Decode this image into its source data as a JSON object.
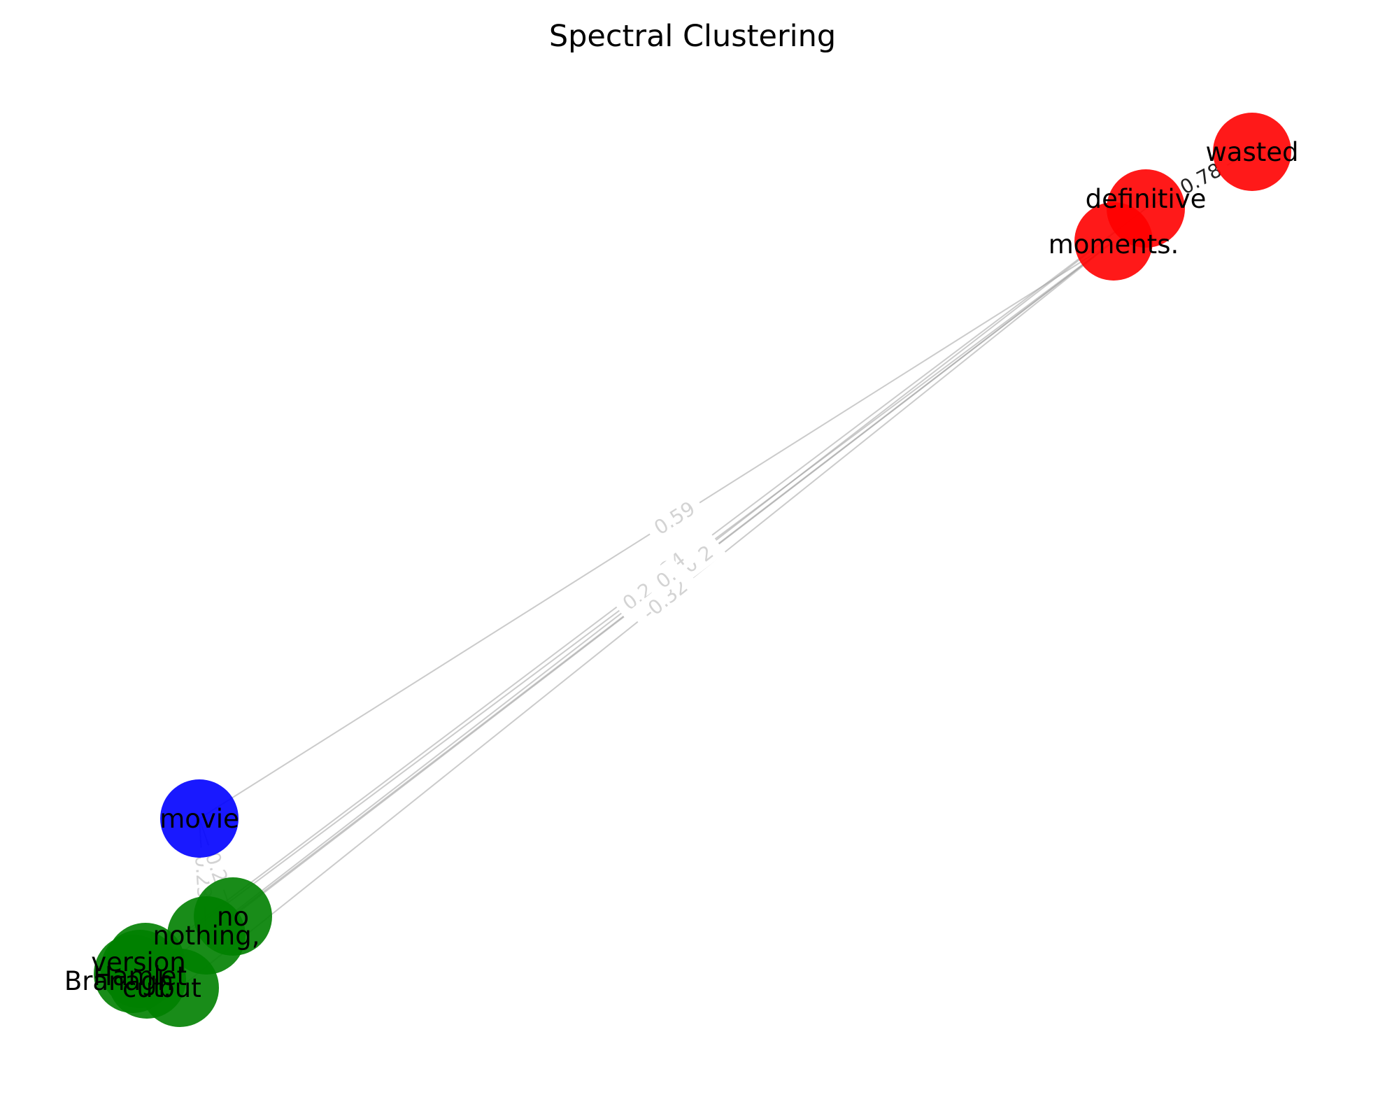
{
  "title": "Spectral Clustering",
  "colors": {
    "cluster_red": "#ff0000",
    "cluster_green": "#008000",
    "cluster_blue": "#0000ff",
    "edge": "#a0a0a0",
    "edge_label": "#d3d3d3"
  },
  "nodes": [
    {
      "id": "wasted",
      "label": "wasted",
      "cluster": "red"
    },
    {
      "id": "definitive",
      "label": "definitive",
      "cluster": "red"
    },
    {
      "id": "moments",
      "label": "moments.",
      "cluster": "red"
    },
    {
      "id": "movie",
      "label": "movie",
      "cluster": "blue"
    },
    {
      "id": "no",
      "label": "no",
      "cluster": "green"
    },
    {
      "id": "nothing",
      "label": "nothing,",
      "cluster": "green"
    },
    {
      "id": "version",
      "label": "version",
      "cluster": "green"
    },
    {
      "id": "branagh",
      "label": "Branagh",
      "cluster": "green"
    },
    {
      "id": "hamlet",
      "label": "Hamlet",
      "cluster": "green"
    },
    {
      "id": "cut",
      "label": "cut.",
      "cluster": "green"
    },
    {
      "id": "but",
      "label": "but",
      "cluster": "green"
    }
  ],
  "edges": [
    {
      "source": "definitive",
      "target": "wasted",
      "label": "0.78"
    },
    {
      "source": "movie",
      "target": "moments",
      "label": "0.59"
    },
    {
      "source": "no",
      "target": "moments",
      "label": "-0.32"
    },
    {
      "source": "nothing",
      "target": "moments",
      "label": "0.60"
    },
    {
      "source": "version",
      "target": "definitive",
      "label": "0.34"
    },
    {
      "source": "branagh",
      "target": "moments",
      "label": "0.27"
    },
    {
      "source": "but",
      "target": "moments",
      "label": "-0.32"
    },
    {
      "source": "cut",
      "target": "definitive",
      "label": "0."
    },
    {
      "source": "movie",
      "target": "nothing",
      "label": "0.23"
    },
    {
      "source": "movie",
      "target": "no",
      "label": "0.2"
    }
  ]
}
